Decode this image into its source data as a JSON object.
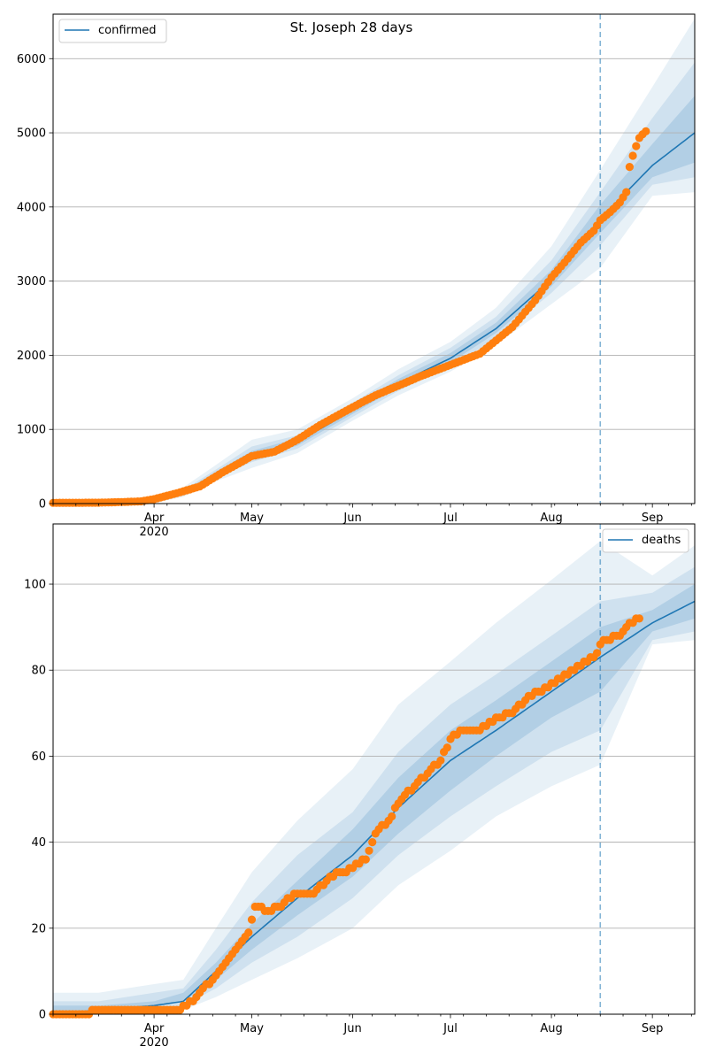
{
  "chart_data": [
    {
      "type": "line",
      "title": "St. Joseph 28 days",
      "legend": {
        "label": "confirmed",
        "placement": "top-left"
      },
      "xlabel": "",
      "ylabel": "",
      "x_range": [
        "2020-03-01",
        "2020-09-14"
      ],
      "x_ticks": [
        {
          "date": "2020-04-01",
          "label": "Apr",
          "sublabel": "2020"
        },
        {
          "date": "2020-05-01",
          "label": "May"
        },
        {
          "date": "2020-06-01",
          "label": "Jun"
        },
        {
          "date": "2020-07-01",
          "label": "Jul"
        },
        {
          "date": "2020-08-01",
          "label": "Aug"
        },
        {
          "date": "2020-09-01",
          "label": "Sep"
        }
      ],
      "ylim": [
        0,
        6600
      ],
      "y_ticks": [
        0,
        1000,
        2000,
        3000,
        4000,
        5000,
        6000
      ],
      "grid": "horizontal",
      "forecast_start": "2020-08-16",
      "colors": {
        "line": "#1f77b4",
        "band": "#1f77b4",
        "observed": "#ff7f0e",
        "grid": "#b0b0b0"
      },
      "model": {
        "dates": [
          "2020-03-01",
          "2020-03-15",
          "2020-03-25",
          "2020-04-01",
          "2020-04-10",
          "2020-04-20",
          "2020-05-01",
          "2020-05-15",
          "2020-06-01",
          "2020-06-15",
          "2020-07-01",
          "2020-07-15",
          "2020-08-01",
          "2020-08-16",
          "2020-09-01",
          "2020-09-14"
        ],
        "median": [
          0,
          2,
          10,
          40,
          140,
          400,
          650,
          830,
          1260,
          1620,
          1960,
          2360,
          3020,
          3840,
          4560,
          5000
        ],
        "bands": [
          {
            "lower": [
              0,
              0,
              0,
              10,
              90,
              300,
              480,
              680,
              1120,
              1460,
              1780,
              2140,
              2690,
              3180,
              4150,
              4200
            ],
            "upper": [
              5,
              10,
              30,
              80,
              220,
              520,
              860,
              1000,
              1420,
              1810,
              2180,
              2640,
              3470,
              4500,
              5620,
              6540
            ]
          },
          {
            "lower": [
              0,
              0,
              2,
              20,
              110,
              340,
              560,
              740,
              1170,
              1520,
              1850,
              2230,
              2840,
              3480,
              4300,
              4400
            ],
            "upper": [
              3,
              6,
              20,
              60,
              180,
              460,
              770,
              920,
              1360,
              1730,
              2100,
              2520,
              3280,
              4200,
              5200,
              5950
            ]
          },
          {
            "lower": [
              0,
              1,
              5,
              30,
              125,
              370,
              600,
              780,
              1210,
              1570,
              1900,
              2300,
              2930,
              3650,
              4400,
              4600
            ],
            "upper": [
              2,
              4,
              15,
              50,
              160,
              430,
              710,
              880,
              1310,
              1680,
              2030,
              2440,
              3150,
              4030,
              4850,
              5500
            ]
          }
        ]
      },
      "observed": {
        "dates": [
          "2020-03-01",
          "2020-03-15",
          "2020-03-22",
          "2020-03-28",
          "2020-04-01",
          "2020-04-08",
          "2020-04-15",
          "2020-04-22",
          "2020-05-01",
          "2020-05-08",
          "2020-05-15",
          "2020-05-22",
          "2020-06-01",
          "2020-06-08",
          "2020-06-15",
          "2020-06-22",
          "2020-07-01",
          "2020-07-10",
          "2020-07-20",
          "2020-07-27",
          "2020-08-01",
          "2020-08-05",
          "2020-08-10",
          "2020-08-14",
          "2020-08-16",
          "2020-08-19",
          "2020-08-22",
          "2020-08-24",
          "2020-08-25",
          "2020-08-26",
          "2020-08-27",
          "2020-08-28",
          "2020-08-29",
          "2020-08-30"
        ],
        "values": [
          10,
          12,
          20,
          30,
          60,
          140,
          230,
          420,
          640,
          700,
          860,
          1060,
          1300,
          1460,
          1590,
          1720,
          1870,
          2020,
          2380,
          2740,
          3050,
          3250,
          3520,
          3680,
          3820,
          3930,
          4060,
          4200,
          4540,
          4690,
          4820,
          4930,
          4980,
          5020
        ]
      }
    },
    {
      "type": "line",
      "title": "",
      "legend": {
        "label": "deaths",
        "placement": "top-right"
      },
      "xlabel": "",
      "ylabel": "",
      "x_range": [
        "2020-03-01",
        "2020-09-14"
      ],
      "x_ticks": [
        {
          "date": "2020-04-01",
          "label": "Apr",
          "sublabel": "2020"
        },
        {
          "date": "2020-05-01",
          "label": "May"
        },
        {
          "date": "2020-06-01",
          "label": "Jun"
        },
        {
          "date": "2020-07-01",
          "label": "Jul"
        },
        {
          "date": "2020-08-01",
          "label": "Aug"
        },
        {
          "date": "2020-09-01",
          "label": "Sep"
        }
      ],
      "ylim": [
        0,
        114
      ],
      "y_ticks": [
        0,
        20,
        40,
        60,
        80,
        100
      ],
      "grid": "horizontal",
      "forecast_start": "2020-08-16",
      "colors": {
        "line": "#1f77b4",
        "band": "#1f77b4",
        "observed": "#ff7f0e",
        "grid": "#b0b0b0"
      },
      "model": {
        "dates": [
          "2020-03-01",
          "2020-03-15",
          "2020-04-01",
          "2020-04-10",
          "2020-04-20",
          "2020-05-01",
          "2020-05-15",
          "2020-06-01",
          "2020-06-15",
          "2020-07-01",
          "2020-07-15",
          "2020-08-01",
          "2020-08-16",
          "2020-09-01",
          "2020-09-14"
        ],
        "median": [
          0,
          1,
          2,
          3,
          10,
          18,
          27,
          37,
          48,
          59,
          66,
          75,
          83,
          91,
          96
        ],
        "bands": [
          {
            "lower": [
              0,
              0,
              0,
              1,
              4,
              8,
              13,
              20,
              30,
              38,
              46,
              53,
              58,
              86,
              87
            ],
            "upper": [
              5,
              5,
              7,
              8,
              20,
              33,
              45,
              57,
              72,
              82,
              91,
              101,
              110,
              102,
              109
            ]
          },
          {
            "lower": [
              0,
              0,
              1,
              2,
              6,
              12,
              18,
              27,
              37,
              46,
              53,
              61,
              66,
              87,
              89
            ],
            "upper": [
              3,
              3,
              5,
              6,
              15,
              26,
              37,
              47,
              61,
              72,
              79,
              88,
              96,
              98,
              104
            ]
          },
          {
            "lower": [
              0,
              1,
              2,
              3,
              8,
              15,
              23,
              32,
              42,
              52,
              60,
              69,
              75,
              89,
              92
            ],
            "upper": [
              2,
              2,
              3,
              5,
              12,
              21,
              31,
              43,
              55,
              66,
              73,
              82,
              90,
              94,
              100
            ]
          }
        ]
      },
      "observed": {
        "dates": [
          "2020-03-01",
          "2020-03-24",
          "2020-04-09",
          "2020-04-14",
          "2020-04-20",
          "2020-04-26",
          "2020-04-30",
          "2020-05-02",
          "2020-05-06",
          "2020-05-10",
          "2020-05-14",
          "2020-05-20",
          "2020-05-25",
          "2020-06-01",
          "2020-06-05",
          "2020-06-08",
          "2020-06-12",
          "2020-06-16",
          "2020-06-20",
          "2020-06-24",
          "2020-06-28",
          "2020-07-01",
          "2020-07-05",
          "2020-07-10",
          "2020-07-15",
          "2020-07-20",
          "2020-07-25",
          "2020-07-31",
          "2020-08-06",
          "2020-08-10",
          "2020-08-14",
          "2020-08-17",
          "2020-08-22",
          "2020-08-24",
          "2020-08-28"
        ],
        "values": [
          0,
          1,
          1,
          4,
          9,
          15,
          19,
          25,
          24,
          25,
          28,
          28,
          32,
          34,
          36,
          42,
          45,
          50,
          53,
          56,
          59,
          64,
          66,
          66,
          69,
          70,
          74,
          76,
          79,
          81,
          83,
          87,
          88,
          90,
          92
        ]
      }
    }
  ]
}
